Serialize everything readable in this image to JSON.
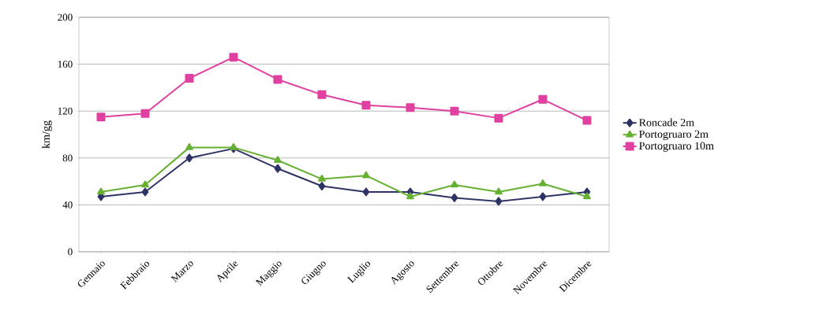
{
  "chart_data": {
    "type": "line",
    "ylabel": "km/gg",
    "categories": [
      "Gennaio",
      "Febbraio",
      "Marzo",
      "Aprile",
      "Maggio",
      "Giugno",
      "Luglio",
      "Agosto",
      "Settembre",
      "Ottobre",
      "Novembre",
      "Dicembre"
    ],
    "series": [
      {
        "name": "Roncade 2m",
        "color": "#2e3366",
        "marker": "diamond",
        "values": [
          47,
          51,
          80,
          88,
          71,
          56,
          51,
          51,
          46,
          43,
          47,
          51
        ]
      },
      {
        "name": "Portogruaro 2m",
        "color": "#66b032",
        "marker": "triangle",
        "values": [
          51,
          57,
          89,
          89,
          78,
          62,
          65,
          47,
          57,
          51,
          58,
          47
        ]
      },
      {
        "name": "Portogruaro 10m",
        "color": "#e040a0",
        "marker": "square",
        "values": [
          115,
          118,
          148,
          166,
          147,
          134,
          125,
          123,
          120,
          114,
          130,
          112
        ]
      }
    ],
    "ylim": [
      0,
      200
    ],
    "yticks": [
      0,
      40,
      80,
      120,
      160,
      200
    ],
    "grid": "y",
    "legend": "right"
  }
}
